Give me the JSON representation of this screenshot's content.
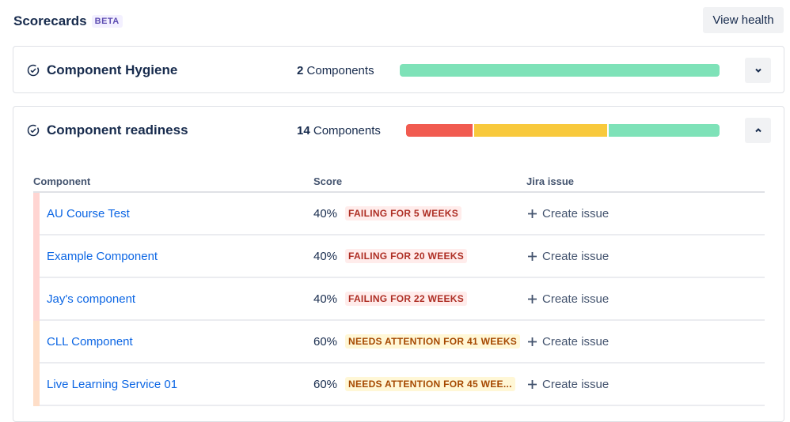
{
  "header": {
    "title": "Scorecards",
    "badge": "BETA",
    "view_health": "View health"
  },
  "scorecards": [
    {
      "name": "Component Hygiene",
      "count": "2",
      "count_label": "Components",
      "expanded": false,
      "segments": [
        {
          "status": "passing",
          "value": 2,
          "color": "#7ee2b8"
        }
      ]
    },
    {
      "name": "Component readiness",
      "count": "14",
      "count_label": "Components",
      "expanded": true,
      "segments": [
        {
          "status": "failing",
          "value": 3,
          "color": "#f15b50"
        },
        {
          "status": "needs-attention",
          "value": 6,
          "color": "#f8c93c"
        },
        {
          "status": "passing",
          "value": 5,
          "color": "#7ee2b8"
        }
      ]
    }
  ],
  "table": {
    "columns": [
      "Component",
      "Score",
      "Jira issue"
    ],
    "rows": [
      {
        "component": "AU Course Test",
        "score": "40%",
        "status": "FAILING FOR 5 WEEKS",
        "kind": "fail",
        "action": "Create issue"
      },
      {
        "component": "Example Component",
        "score": "40%",
        "status": "FAILING FOR 20 WEEKS",
        "kind": "fail",
        "action": "Create issue"
      },
      {
        "component": "Jay's component",
        "score": "40%",
        "status": "FAILING FOR 22 WEEKS",
        "kind": "fail",
        "action": "Create issue"
      },
      {
        "component": "CLL Component",
        "score": "60%",
        "status": "NEEDS ATTENTION FOR 41 WEEKS",
        "kind": "warn",
        "action": "Create issue"
      },
      {
        "component": "Live Learning Service 01",
        "score": "60%",
        "status": "NEEDS ATTENTION FOR 45 WEE...",
        "kind": "warn",
        "action": "Create issue"
      }
    ]
  }
}
